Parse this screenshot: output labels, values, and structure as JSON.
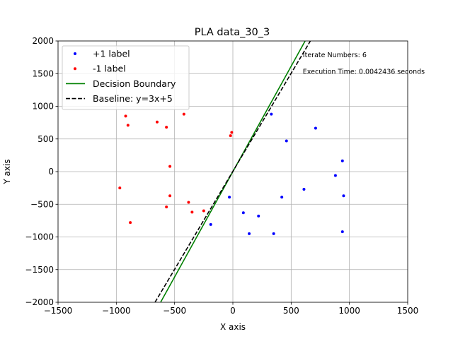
{
  "chart_data": {
    "type": "scatter",
    "title": "PLA data_30_3",
    "xlabel": "X axis",
    "ylabel": "Y axis",
    "xlim": [
      -1500,
      1500
    ],
    "ylim": [
      -2000,
      2000
    ],
    "xticks": [
      -1500,
      -1000,
      -500,
      0,
      500,
      1000,
      1500
    ],
    "yticks": [
      -2000,
      -1500,
      -1000,
      -500,
      0,
      500,
      1000,
      1500,
      2000
    ],
    "xtick_labels": [
      "−1500",
      "−1000",
      "−500",
      "0",
      "500",
      "1000",
      "1500"
    ],
    "ytick_labels": [
      "−2000",
      "−1500",
      "−1000",
      "−500",
      "0",
      "500",
      "1000",
      "1500",
      "2000"
    ],
    "grid": true,
    "legend_position": "top-left",
    "annotations": [
      {
        "text": "Iterate Numbers: 6",
        "x": 600,
        "y": 1750
      },
      {
        "text": "Execution Time: 0.0042436 seconds",
        "x": 600,
        "y": 1500
      }
    ],
    "series": [
      {
        "name": "+1 label",
        "kind": "scatter",
        "color": "#0000ff",
        "points": [
          [
            330,
            880
          ],
          [
            460,
            470
          ],
          [
            710,
            665
          ],
          [
            940,
            165
          ],
          [
            880,
            -60
          ],
          [
            610,
            -270
          ],
          [
            950,
            -370
          ],
          [
            420,
            -390
          ],
          [
            -30,
            -390
          ],
          [
            90,
            -630
          ],
          [
            220,
            -680
          ],
          [
            140,
            -950
          ],
          [
            350,
            -950
          ],
          [
            -190,
            -810
          ],
          [
            940,
            -920
          ]
        ]
      },
      {
        "name": "-1 label",
        "kind": "scatter",
        "color": "#ff0000",
        "points": [
          [
            -920,
            850
          ],
          [
            -900,
            710
          ],
          [
            -650,
            760
          ],
          [
            -570,
            680
          ],
          [
            -420,
            880
          ],
          [
            -10,
            600
          ],
          [
            -20,
            550
          ],
          [
            -540,
            80
          ],
          [
            -970,
            -250
          ],
          [
            -540,
            -370
          ],
          [
            -380,
            -470
          ],
          [
            -350,
            -620
          ],
          [
            -250,
            -600
          ],
          [
            -570,
            -540
          ],
          [
            -880,
            -780
          ]
        ]
      },
      {
        "name": "Decision Boundary",
        "kind": "line",
        "color": "#008000",
        "style": "solid",
        "points": [
          [
            -620,
            -2000
          ],
          [
            620,
            2000
          ]
        ]
      },
      {
        "name": "Baseline: y=3x+5",
        "kind": "line",
        "color": "#000000",
        "style": "dashed",
        "points": [
          [
            -668.3,
            -2000
          ],
          [
            665,
            2000
          ]
        ]
      }
    ]
  }
}
